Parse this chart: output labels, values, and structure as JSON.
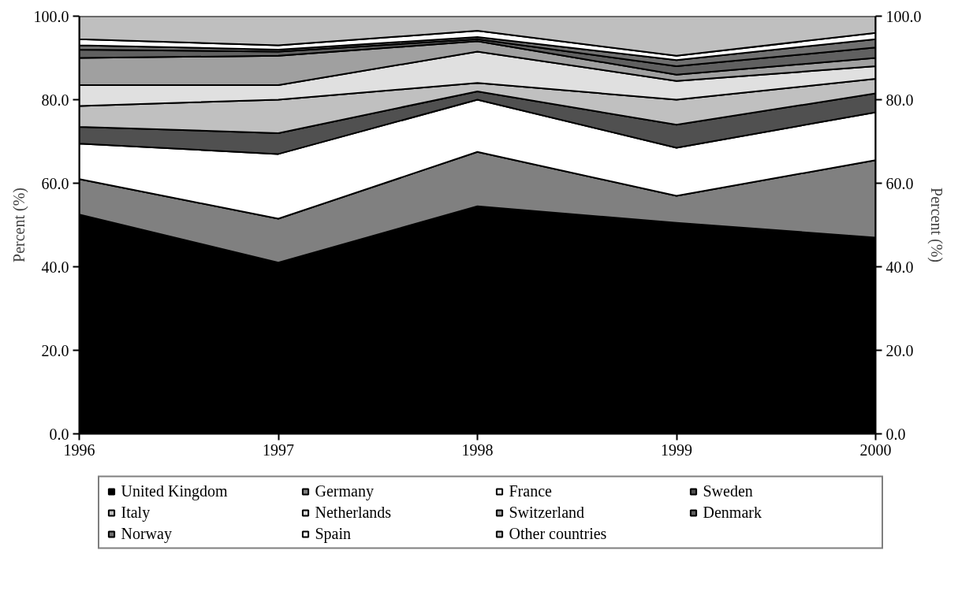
{
  "chart_data": {
    "type": "area",
    "stacked": true,
    "ylabel": "Percent (%)",
    "y2label": "Percent (%)",
    "x": [
      1996,
      1997,
      1998,
      1999,
      2000
    ],
    "xlim": [
      1996,
      2000
    ],
    "xticks": [
      1996,
      1997,
      1998,
      1999,
      2000
    ],
    "ylim": [
      0,
      100
    ],
    "yticks": [
      {
        "value": 0,
        "label": "0.0"
      },
      {
        "value": 20,
        "label": "20.0"
      },
      {
        "value": 40,
        "label": "40.0"
      },
      {
        "value": 60,
        "label": "60.0"
      },
      {
        "value": 80,
        "label": "80.0"
      },
      {
        "value": 100,
        "label": "100.0"
      }
    ],
    "y2lim": [
      0,
      100
    ],
    "y2ticks": [
      {
        "value": 0,
        "label": "0.0"
      },
      {
        "value": 20,
        "label": "20.0"
      },
      {
        "value": 40,
        "label": "40.0"
      },
      {
        "value": 60,
        "label": "60.0"
      },
      {
        "value": 80,
        "label": "80.0"
      },
      {
        "value": 100,
        "label": "100.0"
      }
    ],
    "legend": "bottom",
    "series": [
      {
        "name": "United Kingdom",
        "color": "#000000",
        "values": [
          52.5,
          41,
          54.5,
          50.5,
          47
        ]
      },
      {
        "name": "Germany",
        "color": "#808080",
        "values": [
          8.5,
          10.5,
          13,
          6.5,
          18.5
        ]
      },
      {
        "name": "France",
        "color": "#ffffff",
        "values": [
          8.5,
          15.5,
          12.5,
          11.5,
          11.5
        ]
      },
      {
        "name": "Sweden",
        "color": "#505050",
        "values": [
          4,
          5,
          2,
          5.5,
          4.5
        ]
      },
      {
        "name": "Italy",
        "color": "#c0c0c0",
        "values": [
          5,
          8,
          2,
          6,
          3.5
        ]
      },
      {
        "name": "Netherlands",
        "color": "#e0e0e0",
        "values": [
          5,
          3.5,
          7.5,
          4.5,
          3
        ]
      },
      {
        "name": "Switzerland",
        "color": "#a0a0a0",
        "values": [
          6.5,
          7,
          2.5,
          1.5,
          2
        ]
      },
      {
        "name": "Denmark",
        "color": "#606060",
        "values": [
          2,
          1,
          0.5,
          2,
          2.5
        ]
      },
      {
        "name": "Norway",
        "color": "#707070",
        "values": [
          1,
          0.5,
          0.5,
          1.5,
          2
        ]
      },
      {
        "name": "Spain",
        "color": "#fefefe",
        "values": [
          1.5,
          1,
          1.5,
          1,
          1.5
        ]
      },
      {
        "name": "Other countries",
        "color": "#bfbfbf",
        "values": [
          5.5,
          7,
          3.5,
          9.5,
          4
        ]
      }
    ]
  }
}
